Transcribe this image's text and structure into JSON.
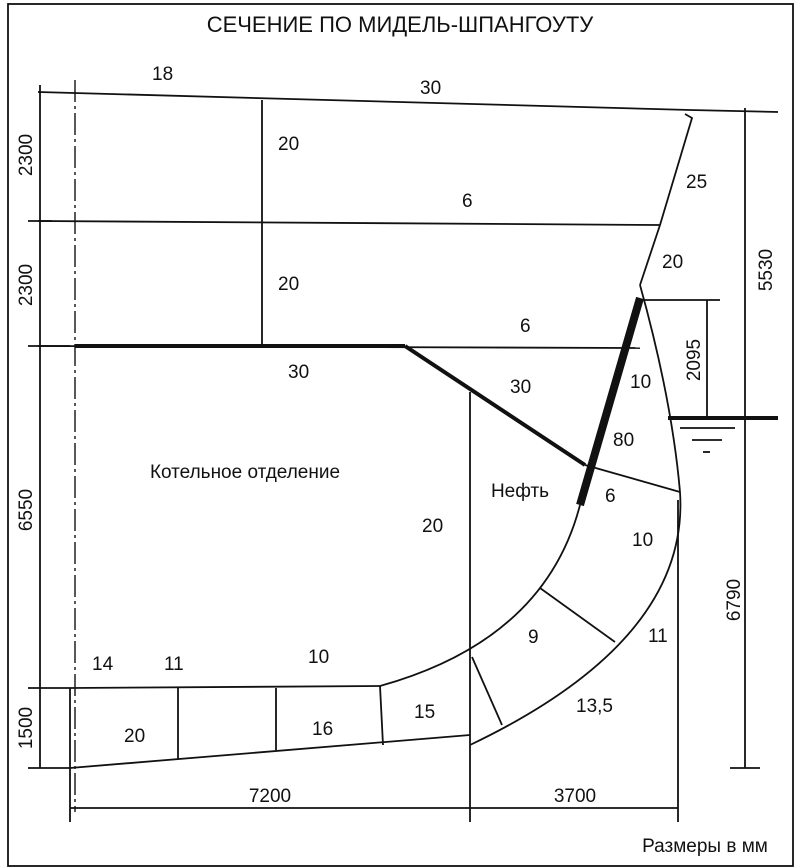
{
  "title": "СЕЧЕНИЕ ПО МИДЕЛЬ-ШПАНГОУТУ",
  "compartments": {
    "boiler_room": "Котельное отделение",
    "oil": "Нефть"
  },
  "dimensions": {
    "left": [
      "2300",
      "2300",
      "6550",
      "1500"
    ],
    "right_total": "5530",
    "right_lower": "6790",
    "draft_above": "2095",
    "bottom_left": "7200",
    "bottom_right": "3700"
  },
  "units_note": "Размеры в мм",
  "thickness_labels": {
    "deck_18": "18",
    "deck_30": "30",
    "bulkhead_upper_20": "20",
    "side_25": "25",
    "deck2_6": "6",
    "bulkhead_mid_20": "20",
    "side_20": "20",
    "deck3_6": "6",
    "deck3_30": "30",
    "side_10": "10",
    "slope_30": "30",
    "long_bhd_80": "80",
    "tank_6": "6",
    "bulkhead_20": "20",
    "bilge_10": "10",
    "inner_9": "9",
    "bilge_11": "11",
    "inner_bottom_14": "14",
    "inner_bottom_11": "11",
    "inner_bottom_10": "10",
    "bilge_135": "13,5",
    "bottom_16": "16",
    "bottom_15": "15",
    "keel_20": "20"
  }
}
